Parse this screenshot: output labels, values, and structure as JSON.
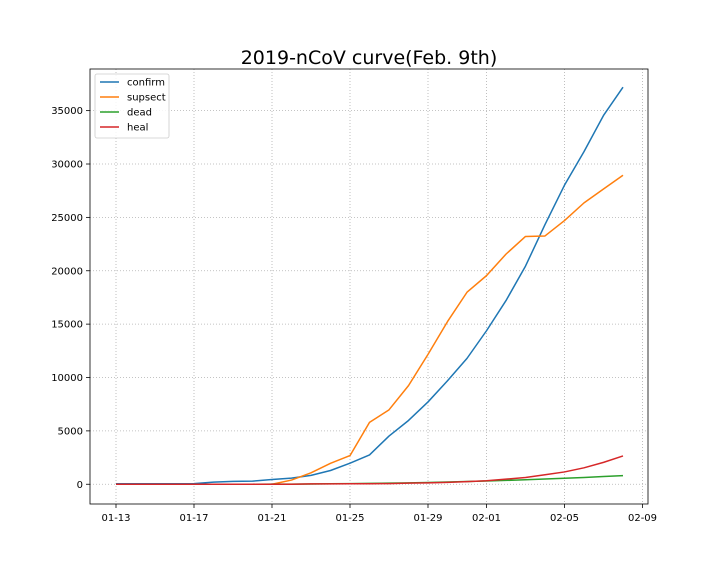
{
  "chart_data": {
    "type": "line",
    "title": "2019-nCoV curve(Feb. 9th)",
    "xlabel": "",
    "ylabel": "",
    "x": [
      "01-13",
      "01-14",
      "01-15",
      "01-16",
      "01-17",
      "01-18",
      "01-19",
      "01-20",
      "01-21",
      "01-22",
      "01-23",
      "01-24",
      "01-25",
      "01-26",
      "01-27",
      "01-28",
      "01-29",
      "01-30",
      "01-31",
      "02-01",
      "02-02",
      "02-03",
      "02-04",
      "02-05",
      "02-06",
      "02-07",
      "02-08"
    ],
    "x_ticks": [
      "01-13",
      "01-17",
      "01-21",
      "01-25",
      "01-29",
      "02-01",
      "02-05",
      "02-09"
    ],
    "y_ticks": [
      "0",
      "5000",
      "10000",
      "15000",
      "20000",
      "25000",
      "30000",
      "35000"
    ],
    "ylim": [
      -1850,
      38900
    ],
    "xlim": [
      "01-12 (approx.)",
      "02-09 (approx.)"
    ],
    "grid": true,
    "legend_position": "upper-left",
    "series": [
      {
        "name": "confirm",
        "color": "#1f77b4",
        "values": [
          41,
          41,
          41,
          45,
          62,
          198,
          275,
          291,
          440,
          571,
          830,
          1287,
          1975,
          2744,
          4515,
          5974,
          7711,
          9692,
          11791,
          14380,
          17205,
          20438,
          24324,
          28018,
          31161,
          34546,
          37198
        ]
      },
      {
        "name": "supsect",
        "color": "#ff7f0e",
        "values": [
          0,
          0,
          0,
          0,
          0,
          0,
          0,
          0,
          0,
          393,
          1072,
          1965,
          2684,
          5794,
          6973,
          9239,
          12167,
          15238,
          17988,
          19544,
          21558,
          23214,
          23260,
          24702,
          26359,
          27657,
          28942
        ]
      },
      {
        "name": "dead",
        "color": "#2ca02c",
        "values": [
          1,
          1,
          2,
          2,
          2,
          3,
          3,
          6,
          9,
          17,
          25,
          41,
          56,
          80,
          106,
          132,
          170,
          213,
          259,
          304,
          361,
          425,
          490,
          563,
          636,
          722,
          811
        ]
      },
      {
        "name": "heal",
        "color": "#d62728",
        "values": [
          0,
          0,
          0,
          0,
          0,
          0,
          0,
          0,
          0,
          0,
          34,
          38,
          49,
          51,
          60,
          103,
          124,
          171,
          243,
          328,
          475,
          632,
          892,
          1153,
          1540,
          2050,
          2649
        ]
      }
    ]
  }
}
